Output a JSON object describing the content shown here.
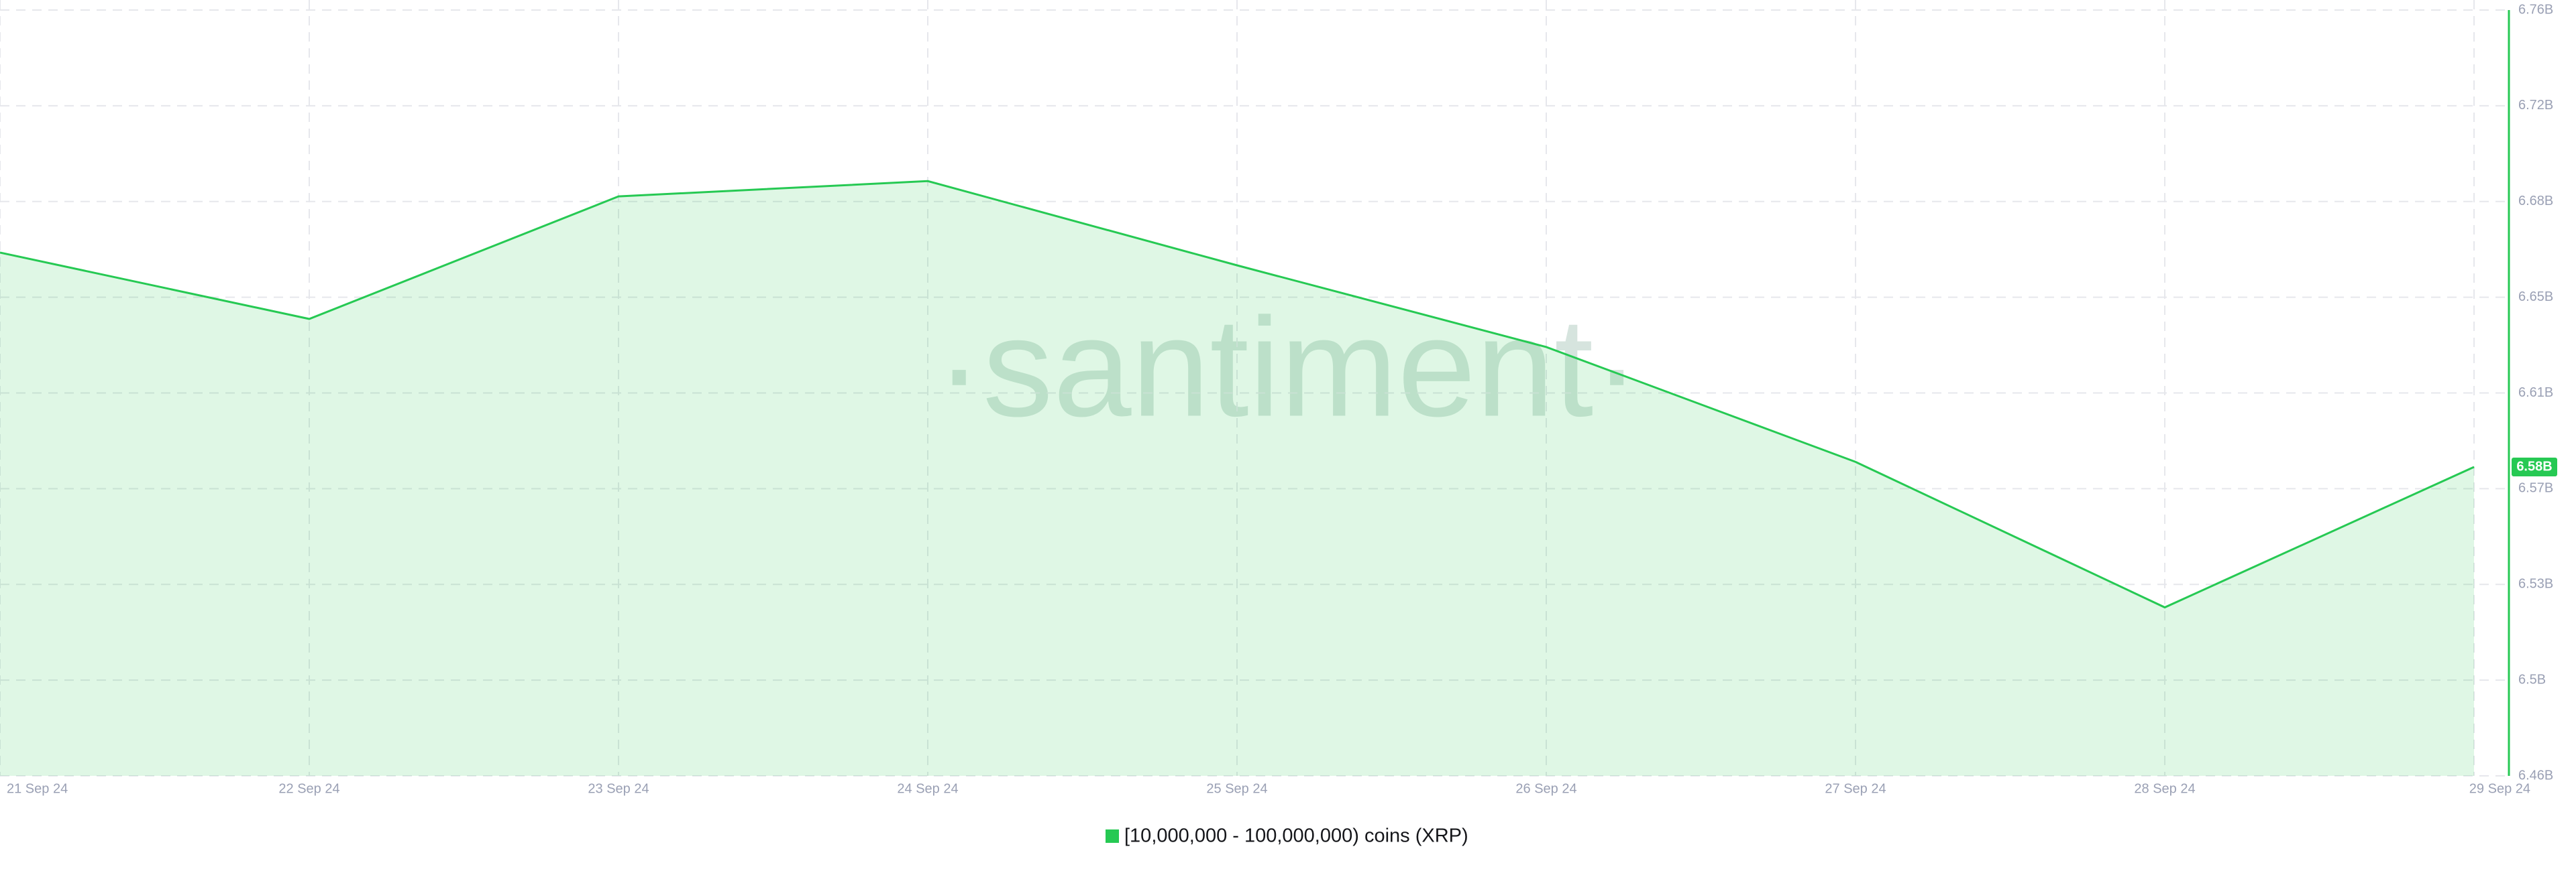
{
  "chart_data": {
    "type": "area",
    "watermark": "·santiment·",
    "categories": [
      "21 Sep 24",
      "22 Sep 24",
      "23 Sep 24",
      "24 Sep 24",
      "25 Sep 24",
      "26 Sep 24",
      "27 Sep 24",
      "28 Sep 24",
      "29 Sep 24"
    ],
    "series": [
      {
        "name": "[10,000,000 - 100,000,000) coins (XRP)",
        "color": "#26c953",
        "values": [
          6.665,
          6.639,
          6.687,
          6.693,
          6.66,
          6.628,
          6.583,
          6.526,
          6.581
        ],
        "value_labels": [
          null,
          null,
          null,
          null,
          null,
          null,
          null,
          null,
          "6.58B"
        ]
      }
    ],
    "ylim": [
      6.46,
      6.76
    ],
    "yticks": [
      {
        "value": 6.46,
        "label": "6.46B"
      },
      {
        "value": 6.4975,
        "label": "6.5B"
      },
      {
        "value": 6.535,
        "label": "6.53B"
      },
      {
        "value": 6.5725,
        "label": "6.57B"
      },
      {
        "value": 6.61,
        "label": "6.61B"
      },
      {
        "value": 6.6475,
        "label": "6.65B"
      },
      {
        "value": 6.685,
        "label": "6.68B"
      },
      {
        "value": 6.7225,
        "label": "6.72B"
      },
      {
        "value": 6.76,
        "label": "6.76B"
      }
    ],
    "grid": true
  }
}
